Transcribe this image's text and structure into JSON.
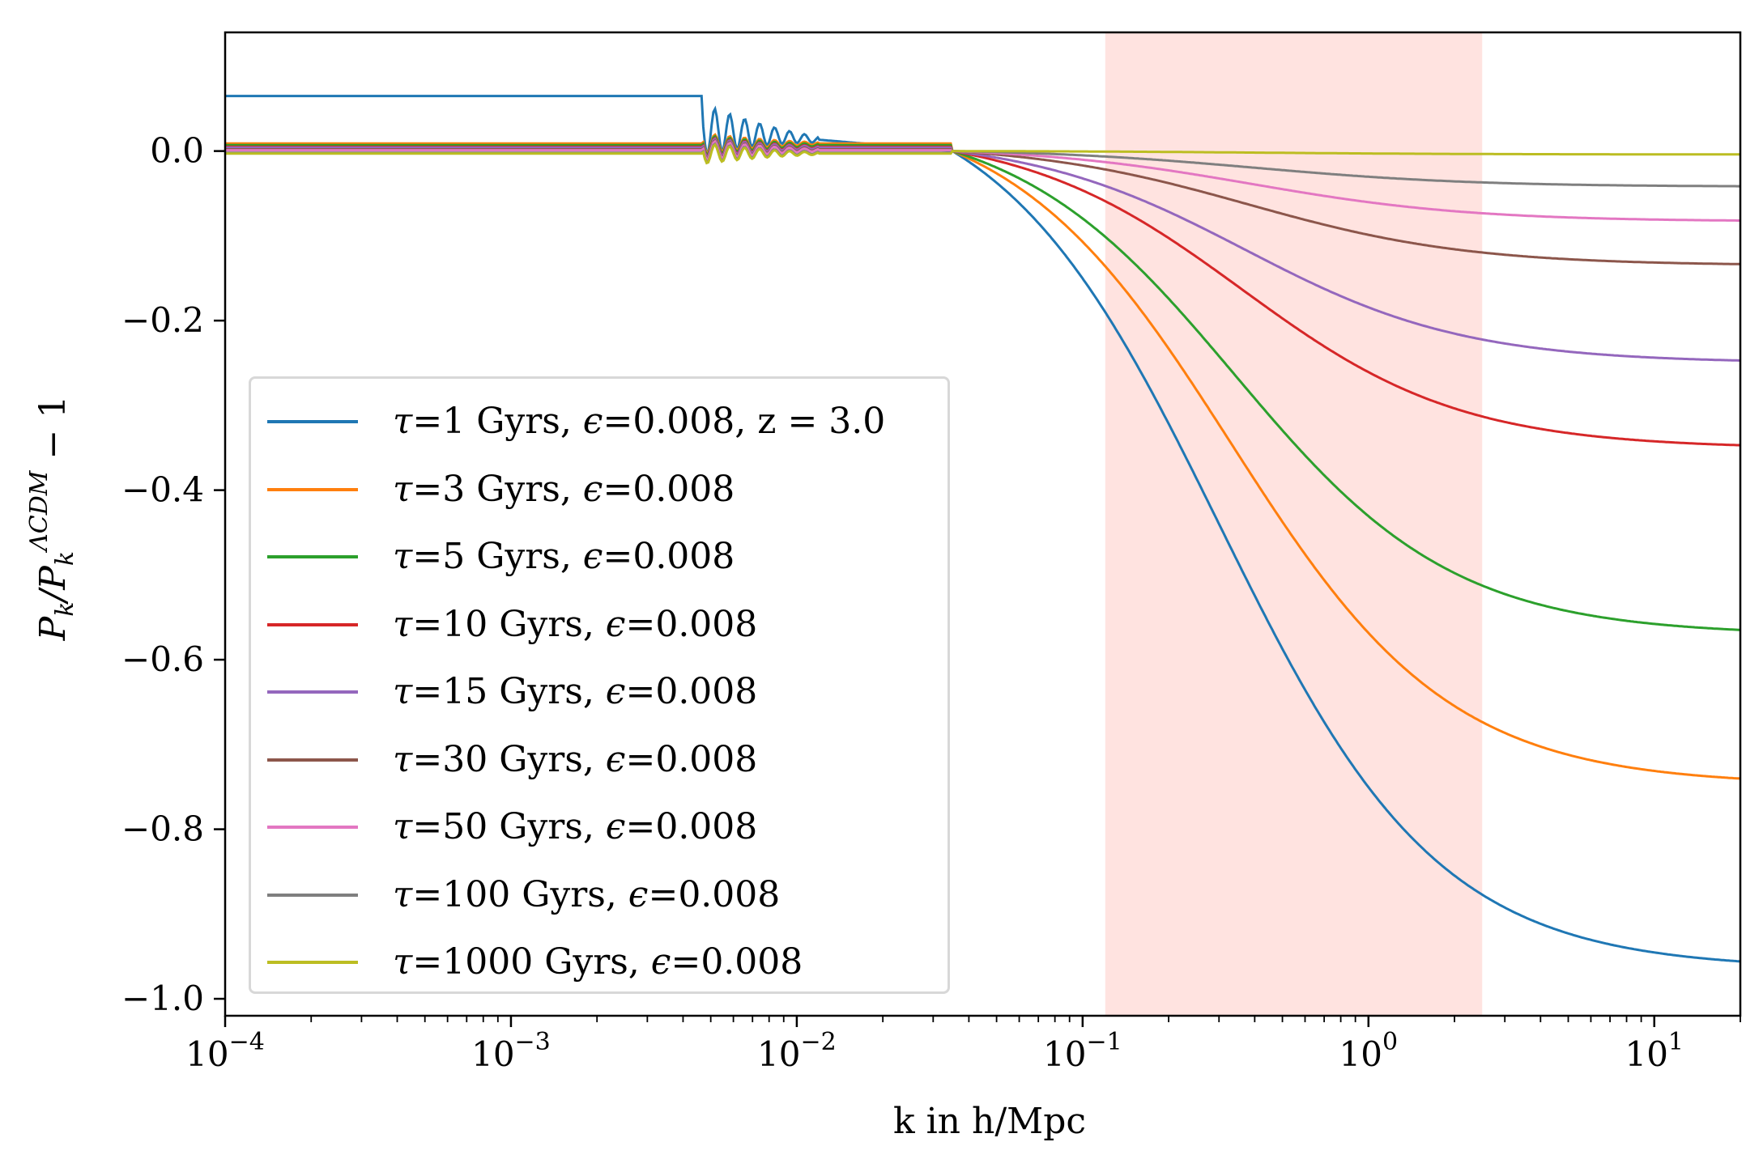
{
  "chart_data": {
    "type": "line",
    "xscale": "log",
    "xlabel": "k in h/Mpc",
    "ylabel": "P_k/P_k^{ΛCDM} − 1",
    "xlim": [
      0.0001,
      20
    ],
    "ylim": [
      -1.02,
      0.14
    ],
    "x_ticks": [
      {
        "base": "10",
        "exp": "−4",
        "value": 0.0001
      },
      {
        "base": "10",
        "exp": "−3",
        "value": 0.001
      },
      {
        "base": "10",
        "exp": "−2",
        "value": 0.01
      },
      {
        "base": "10",
        "exp": "−1",
        "value": 0.1
      },
      {
        "base": "10",
        "exp": "0",
        "value": 1
      },
      {
        "base": "10",
        "exp": "1",
        "value": 10
      }
    ],
    "y_ticks": [
      {
        "label": "0.0",
        "value": 0.0
      },
      {
        "label": "−0.2",
        "value": -0.2
      },
      {
        "label": "−0.4",
        "value": -0.4
      },
      {
        "label": "−0.6",
        "value": -0.6
      },
      {
        "label": "−0.8",
        "value": -0.8
      },
      {
        "label": "−1.0",
        "value": -1.0
      }
    ],
    "shaded_region": {
      "x_from": 0.12,
      "x_to": 2.5,
      "color": "#ffe3e0"
    },
    "series": [
      {
        "tau": "1",
        "eps": "0.008",
        "extra": ", z = 3.0",
        "color": "#1f77b4",
        "large_k": 0.065,
        "floor": -0.965,
        "k_half": 0.3
      },
      {
        "tau": "3",
        "eps": "0.008",
        "extra": "",
        "color": "#ff7f0e",
        "large_k": 0.009,
        "floor": -0.748,
        "k_half": 0.33
      },
      {
        "tau": "5",
        "eps": "0.008",
        "extra": "",
        "color": "#2ca02c",
        "large_k": 0.007,
        "floor": -0.571,
        "k_half": 0.34
      },
      {
        "tau": "10",
        "eps": "0.008",
        "extra": "",
        "color": "#d62728",
        "large_k": 0.005,
        "floor": -0.351,
        "k_half": 0.36
      },
      {
        "tau": "15",
        "eps": "0.008",
        "extra": "",
        "color": "#9467bd",
        "large_k": 0.004,
        "floor": -0.25,
        "k_half": 0.37
      },
      {
        "tau": "30",
        "eps": "0.008",
        "extra": "",
        "color": "#8c564b",
        "large_k": 0.002,
        "floor": -0.135,
        "k_half": 0.38
      },
      {
        "tau": "50",
        "eps": "0.008",
        "extra": "",
        "color": "#e377c2",
        "large_k": 0.001,
        "floor": -0.083,
        "k_half": 0.39
      },
      {
        "tau": "100",
        "eps": "0.008",
        "extra": "",
        "color": "#7f7f7f",
        "large_k": -0.002,
        "floor": -0.042,
        "k_half": 0.4
      },
      {
        "tau": "1000",
        "eps": "0.008",
        "extra": "",
        "color": "#bcbd22",
        "large_k": -0.003,
        "floor": -0.004,
        "k_half": 0.42
      }
    ]
  }
}
